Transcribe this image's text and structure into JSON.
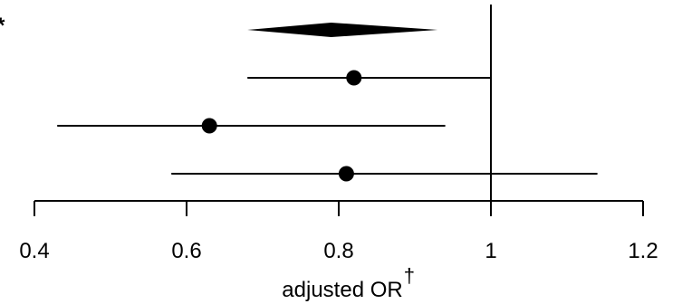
{
  "chart_data": {
    "type": "forest",
    "xlim": [
      0.4,
      1.2
    ],
    "ticks": [
      0.4,
      0.6,
      0.8,
      1.0,
      1.2
    ],
    "tick_labels": [
      "0.4",
      "0.6",
      "0.8",
      "1",
      "1.2"
    ],
    "xlabel": "adjusted OR",
    "xlabel_sup": "†",
    "reference_line": 1.0,
    "asterisk": "*",
    "summary": {
      "estimate": 0.79,
      "lower": 0.68,
      "upper": 0.93
    },
    "rows": [
      {
        "estimate": 0.82,
        "lower": 0.68,
        "upper": 1.0
      },
      {
        "estimate": 0.63,
        "lower": 0.43,
        "upper": 0.94
      },
      {
        "estimate": 0.81,
        "lower": 0.58,
        "upper": 1.14
      }
    ],
    "grid": false,
    "colors": {
      "marks": "#000000",
      "background": "#ffffff"
    }
  }
}
